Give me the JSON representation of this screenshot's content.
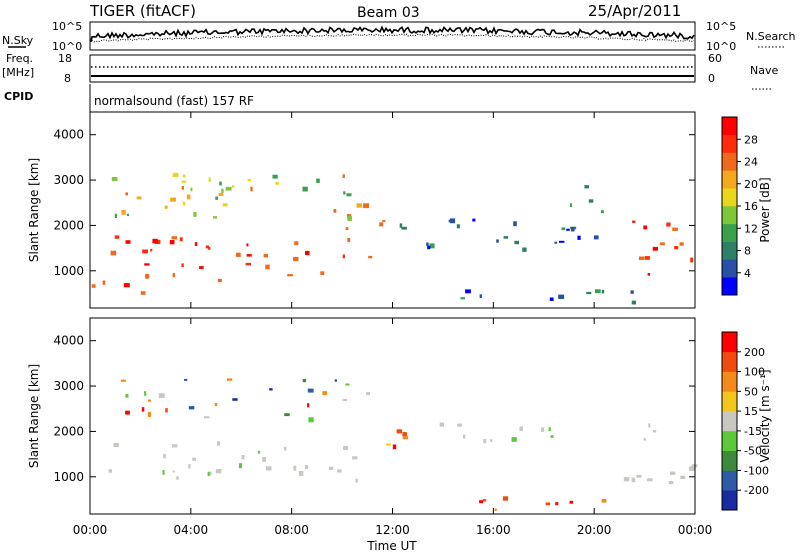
{
  "header": {
    "title": "TIGER (fitACF)",
    "beam": "Beam 03",
    "date": "25/Apr/2011"
  },
  "noise_panel": {
    "left_label": "N.Sky",
    "right_label": "N.Search",
    "left_ticks": [
      "10^5",
      "10^0"
    ],
    "right_ticks": [
      "10^5",
      "10^0"
    ]
  },
  "freq_panel": {
    "left_label": "Freq.",
    "left_unit": "[MHz]",
    "right_label": "Nave",
    "left_ticks": [
      "18",
      "8"
    ],
    "right_ticks": [
      "60",
      "0"
    ]
  },
  "cpid": {
    "label": "CPID",
    "text": "normalsound (fast) 157 RF"
  },
  "chart_data": [
    {
      "type": "heatmap",
      "quantity": "Power",
      "ylabel": "Slant Range [km]",
      "xlabel": "",
      "ylim": [
        180,
        4500
      ],
      "yticks": [
        "1000",
        "2000",
        "3000",
        "4000"
      ],
      "colorbar_label": "Power [dB]",
      "colorbar_ticks": [
        "28",
        "24",
        "20",
        "16",
        "12",
        "8",
        "4"
      ],
      "colorbar_colors": [
        "#0000ff",
        "#2a4fa8",
        "#2f7f66",
        "#3aa04c",
        "#7cc83a",
        "#e9d81a",
        "#f4a81a",
        "#f06a1c",
        "#ff2c0c",
        "#ff0000"
      ],
      "echo_regions": [
        {
          "t0": 0.0,
          "t1": 6.0,
          "r0": 700,
          "r1": 1800,
          "level": "high"
        },
        {
          "t0": 1.5,
          "t1": 3.5,
          "r0": 450,
          "r1": 650,
          "level": "high"
        },
        {
          "t0": 6.0,
          "t1": 9.5,
          "r0": 900,
          "r1": 1700,
          "level": "high"
        },
        {
          "t0": 10.0,
          "t1": 12.0,
          "r0": 1300,
          "r1": 2200,
          "level": "high"
        },
        {
          "t0": 12.0,
          "t1": 19.5,
          "r0": 1500,
          "r1": 2200,
          "level": "low"
        },
        {
          "t0": 13.0,
          "t1": 22.0,
          "r0": 300,
          "r1": 600,
          "level": "low"
        },
        {
          "t0": 19.0,
          "t1": 20.5,
          "r0": 1700,
          "r1": 3000,
          "level": "low"
        },
        {
          "t0": 21.5,
          "t1": 24.0,
          "r0": 800,
          "r1": 2200,
          "level": "high"
        },
        {
          "t0": 0.5,
          "t1": 11.5,
          "r0": 2200,
          "r1": 3200,
          "level": "mid"
        }
      ]
    },
    {
      "type": "heatmap",
      "quantity": "Velocity",
      "ylabel": "Slant Range [km]",
      "xlabel": "Time UT",
      "ylim": [
        180,
        4500
      ],
      "yticks": [
        "1000",
        "2000",
        "3000",
        "4000"
      ],
      "xticks": [
        "00:00",
        "04:00",
        "08:00",
        "12:00",
        "16:00",
        "20:00",
        "00:00"
      ],
      "xlim_hours": [
        0,
        24
      ],
      "colorbar_label": "Velocity [m s⁻¹]",
      "colorbar_ticks": [
        "200",
        "100",
        "50",
        "15",
        "-15",
        "-50",
        "-100",
        "-200"
      ],
      "colorbar_colors": [
        "#1a2aa0",
        "#2e5aa8",
        "#3c8a3a",
        "#5cc83a",
        "#c8c8c0",
        "#f4c81a",
        "#f48a1a",
        "#f04a10",
        "#ff0000"
      ],
      "echo_regions": [
        {
          "t0": 0.0,
          "t1": 6.0,
          "r0": 1000,
          "r1": 1800,
          "level": "ground"
        },
        {
          "t0": 6.0,
          "t1": 11.5,
          "r0": 900,
          "r1": 1700,
          "level": "ground"
        },
        {
          "t0": 11.0,
          "t1": 13.0,
          "r0": 1300,
          "r1": 2200,
          "level": "neg"
        },
        {
          "t0": 12.5,
          "t1": 19.5,
          "r0": 1700,
          "r1": 2200,
          "level": "ground"
        },
        {
          "t0": 13.0,
          "t1": 22.0,
          "r0": 300,
          "r1": 600,
          "level": "neg"
        },
        {
          "t0": 21.0,
          "t1": 24.0,
          "r0": 800,
          "r1": 2200,
          "level": "ground"
        },
        {
          "t0": 1.0,
          "t1": 11.0,
          "r0": 2300,
          "r1": 3200,
          "level": "mixed"
        }
      ]
    }
  ]
}
